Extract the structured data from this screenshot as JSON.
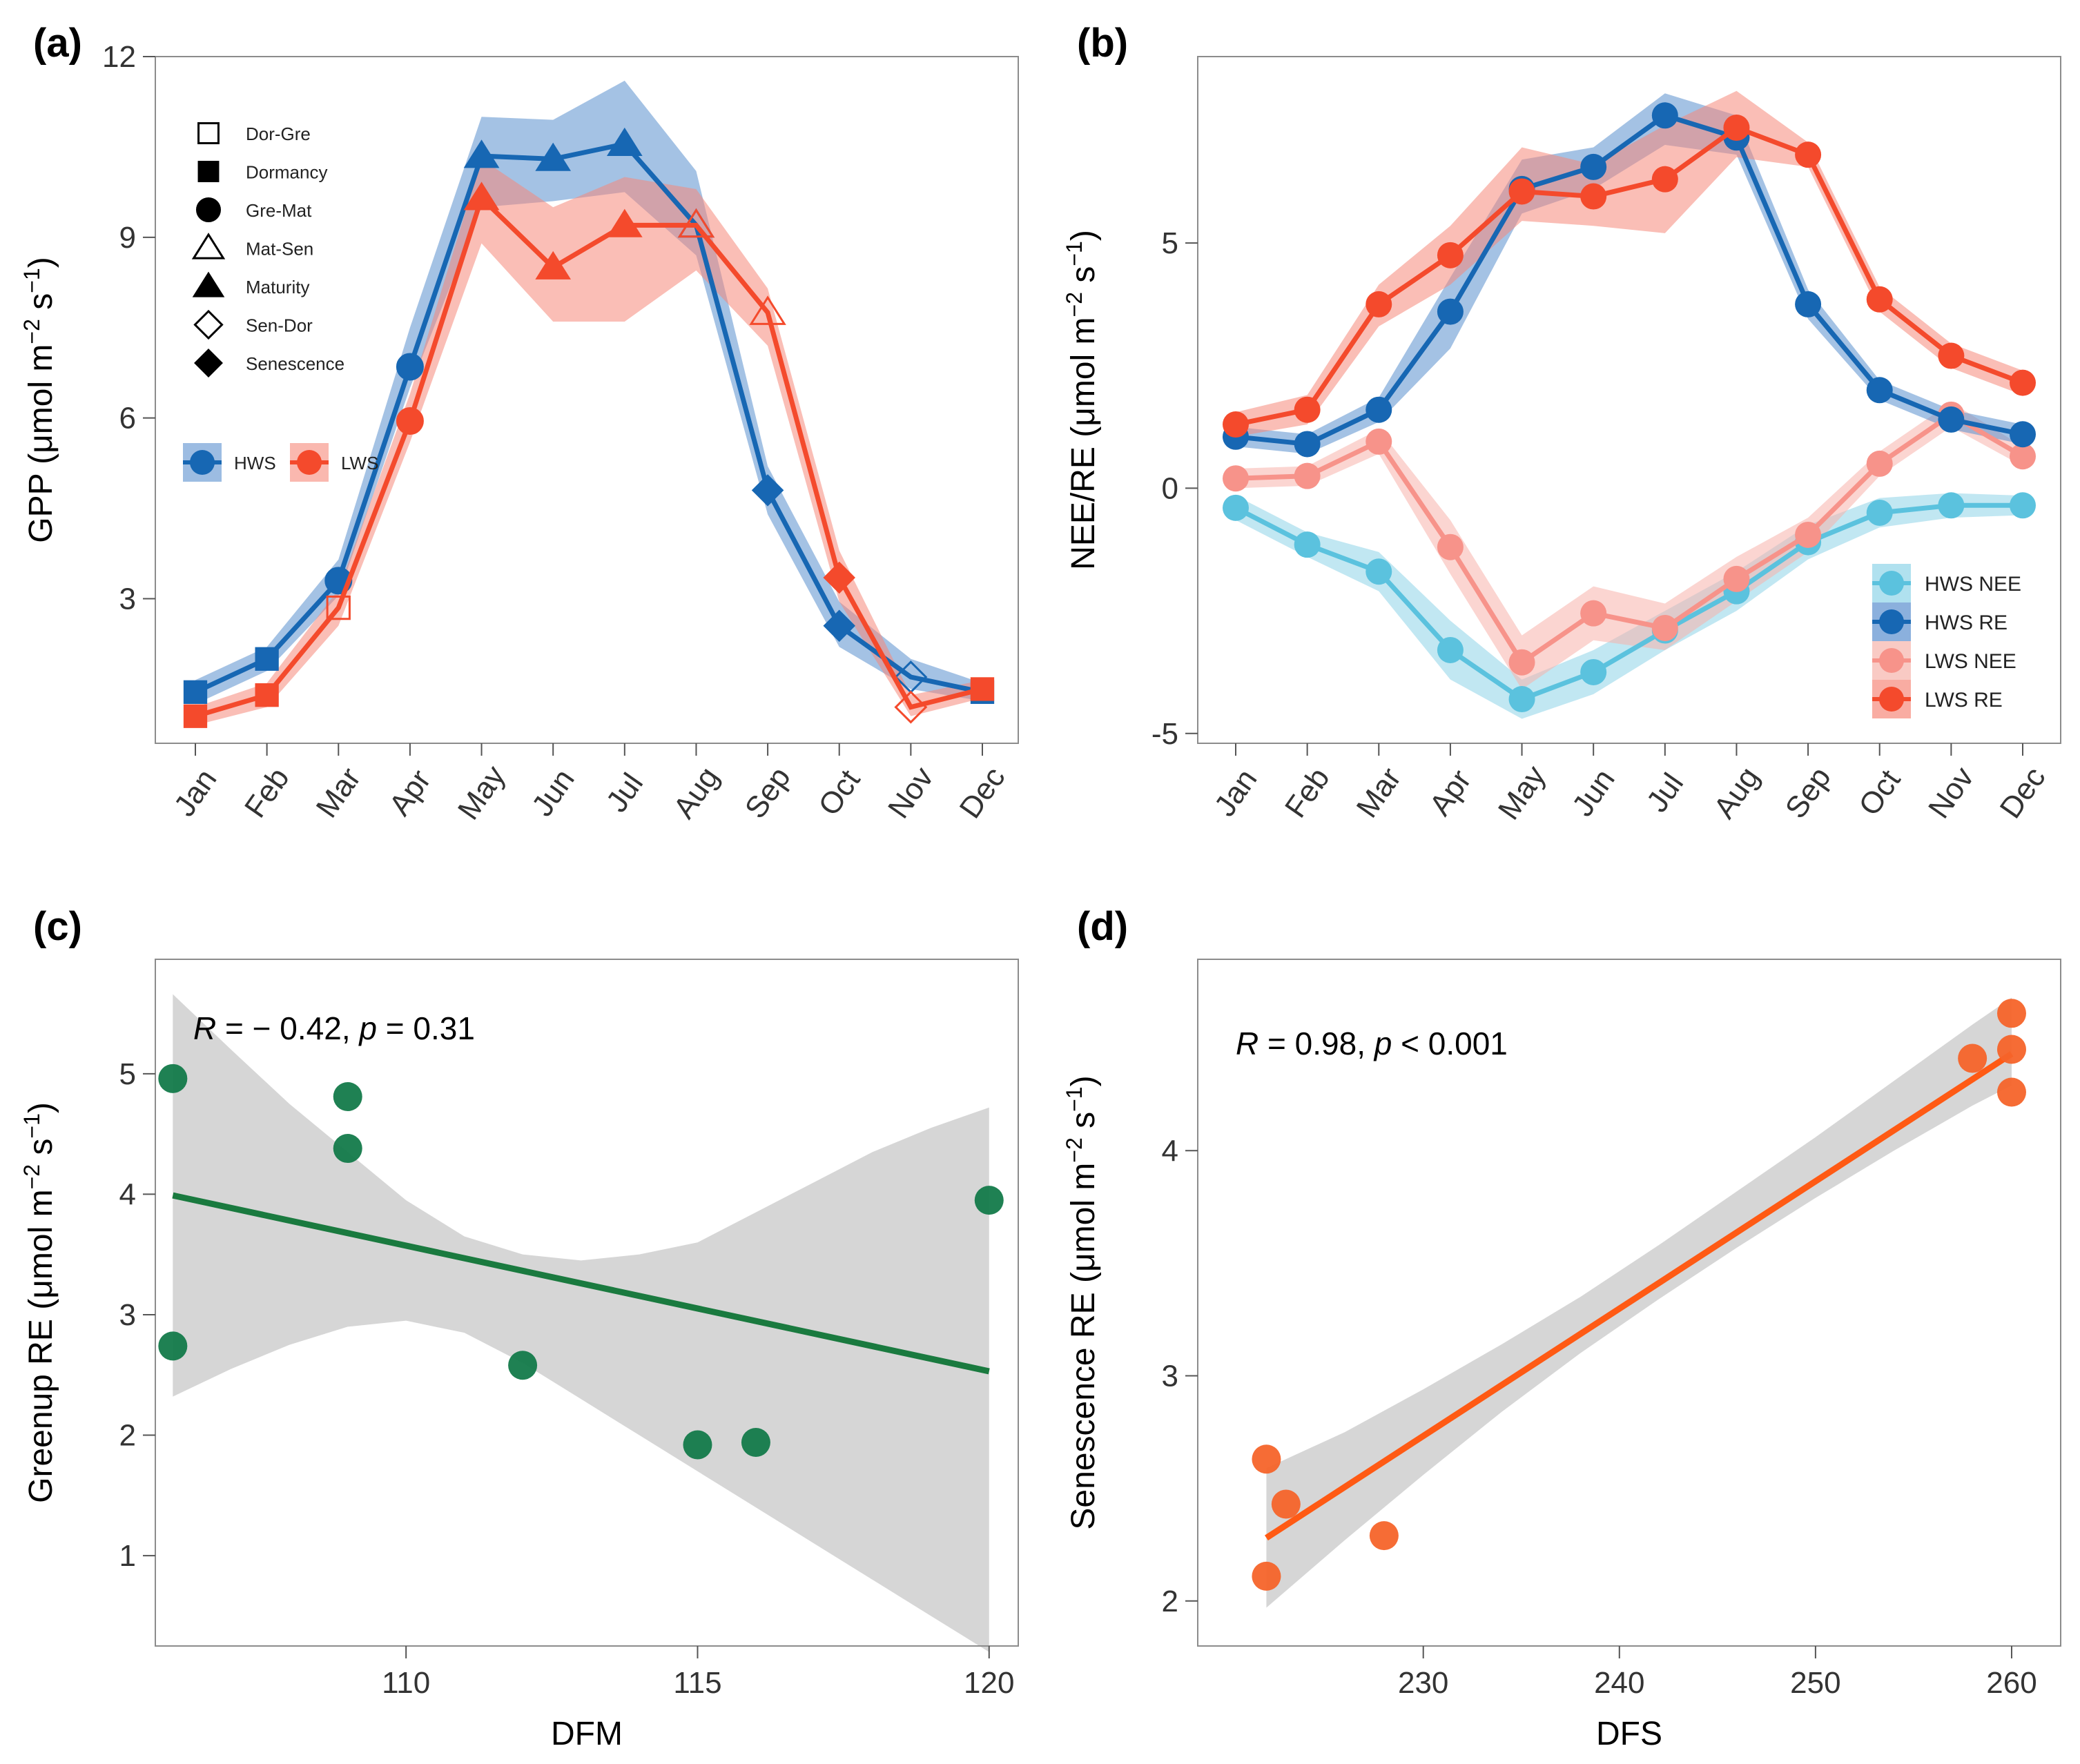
{
  "colors": {
    "hws": "#1767b3",
    "lws": "#f44a2c",
    "hws_band": "#5a8fce",
    "lws_band": "#f6897a",
    "hws_nee": "#5bc2de",
    "hws_nee_band": "#8ed4e8",
    "lws_nee": "#f7938a",
    "lws_nee_band": "#f7b3ab",
    "green": "#1a7a3f",
    "green_point": "#137a4a",
    "orange_line": "#ff5a14",
    "orange_point": "#f5642a",
    "ci_band": "#d6d6d6"
  },
  "chart_data": [
    {
      "id": "a",
      "panel_label": "(a)",
      "type": "line",
      "ylabel": "GPP (μmol m",
      "ylabel_sup": "−2",
      "ylabel_mid": " s",
      "ylabel_sup2": "−1",
      "ylabel_end": ")",
      "xlabel": "",
      "ylim": [
        0.6,
        12
      ],
      "yticks": [
        3,
        6,
        9,
        12
      ],
      "categories": [
        "Jan",
        "Feb",
        "Mar",
        "Apr",
        "May",
        "Jun",
        "Jul",
        "Aug",
        "Sep",
        "Oct",
        "Nov",
        "Dec"
      ],
      "phase_legend": [
        {
          "label": "Dor-Gre",
          "shape": "square",
          "filled": false
        },
        {
          "label": "Dormancy",
          "shape": "square",
          "filled": true
        },
        {
          "label": "Gre-Mat",
          "shape": "circle",
          "filled": true
        },
        {
          "label": "Mat-Sen",
          "shape": "triangle",
          "filled": false
        },
        {
          "label": "Maturity",
          "shape": "triangle",
          "filled": true
        },
        {
          "label": "Sen-Dor",
          "shape": "diamond",
          "filled": false
        },
        {
          "label": "Senescence",
          "shape": "diamond",
          "filled": true
        }
      ],
      "series_legend": [
        {
          "label": "HWS",
          "color": "#1767b3",
          "band": "#5a8fce"
        },
        {
          "label": "LWS",
          "color": "#f44a2c",
          "band": "#f6897a"
        }
      ],
      "series": [
        {
          "name": "HWS",
          "color": "#1767b3",
          "band_color": "#5a8fce",
          "values": [
            1.45,
            2.0,
            3.3,
            6.85,
            10.35,
            10.3,
            10.55,
            9.2,
            4.8,
            2.55,
            1.7,
            1.45
          ],
          "lower": [
            1.25,
            1.8,
            3.05,
            6.5,
            9.5,
            9.6,
            9.75,
            8.7,
            4.4,
            2.2,
            1.5,
            1.3
          ],
          "upper": [
            1.65,
            2.2,
            3.65,
            7.5,
            11.0,
            10.95,
            11.6,
            10.1,
            5.2,
            2.95,
            2.0,
            1.6
          ],
          "markers": [
            "square-filled",
            "square-filled",
            "circle-filled",
            "circle-filled",
            "triangle-filled",
            "triangle-filled",
            "triangle-filled",
            "triangle-open",
            "diamond-filled",
            "diamond-filled",
            "diamond-open",
            "square-filled"
          ]
        },
        {
          "name": "LWS",
          "color": "#f44a2c",
          "band_color": "#f6897a",
          "values": [
            1.05,
            1.4,
            2.85,
            5.95,
            9.65,
            8.5,
            9.2,
            9.2,
            7.75,
            3.35,
            1.2,
            1.5
          ],
          "lower": [
            0.9,
            1.2,
            2.55,
            5.6,
            8.9,
            7.6,
            7.6,
            8.45,
            7.2,
            2.95,
            1.05,
            1.35
          ],
          "upper": [
            1.2,
            1.6,
            3.15,
            6.4,
            10.3,
            9.5,
            10.0,
            9.8,
            8.15,
            3.8,
            1.4,
            1.65
          ],
          "markers": [
            "square-filled",
            "square-filled",
            "square-open",
            "circle-filled",
            "triangle-filled",
            "triangle-filled",
            "triangle-filled",
            "triangle-open",
            "triangle-open",
            "diamond-filled",
            "diamond-open",
            "square-filled"
          ]
        }
      ]
    },
    {
      "id": "b",
      "panel_label": "(b)",
      "type": "line",
      "ylabel": "NEE/RE (μmol m",
      "ylabel_sup": "−2",
      "ylabel_mid": " s",
      "ylabel_sup2": "−1",
      "ylabel_end": ")",
      "xlabel": "",
      "ylim": [
        -5.2,
        8.8
      ],
      "yticks": [
        -5,
        0,
        5
      ],
      "categories": [
        "Jan",
        "Feb",
        "Mar",
        "Apr",
        "May",
        "Jun",
        "Jul",
        "Aug",
        "Sep",
        "Oct",
        "Nov",
        "Dec"
      ],
      "series": [
        {
          "name": "HWS NEE",
          "color": "#5bc2de",
          "band_color": "#8ed4e8",
          "values": [
            -0.4,
            -1.15,
            -1.7,
            -3.3,
            -4.3,
            -3.75,
            -2.9,
            -2.1,
            -1.1,
            -0.5,
            -0.35,
            -0.35
          ],
          "lower": [
            -0.65,
            -1.4,
            -2.1,
            -3.9,
            -4.7,
            -4.2,
            -3.3,
            -2.5,
            -1.45,
            -0.8,
            -0.6,
            -0.55
          ],
          "upper": [
            -0.15,
            -0.9,
            -1.3,
            -2.7,
            -3.9,
            -3.3,
            -2.5,
            -1.7,
            -0.75,
            -0.2,
            -0.1,
            -0.15
          ]
        },
        {
          "name": "HWS RE",
          "color": "#1767b3",
          "band_color": "#5a8fce",
          "values": [
            1.05,
            0.9,
            1.6,
            3.6,
            6.1,
            6.55,
            7.6,
            7.15,
            3.75,
            2.0,
            1.4,
            1.1
          ],
          "lower": [
            0.85,
            0.7,
            1.35,
            2.85,
            5.6,
            6.1,
            7.0,
            6.8,
            3.45,
            1.8,
            1.2,
            0.9
          ],
          "upper": [
            1.25,
            1.1,
            1.85,
            4.3,
            6.7,
            6.95,
            8.05,
            7.6,
            4.05,
            2.2,
            1.6,
            1.3
          ]
        },
        {
          "name": "LWS NEE",
          "color": "#f7938a",
          "band_color": "#f7b3ab",
          "values": [
            0.2,
            0.25,
            0.95,
            -1.2,
            -3.55,
            -2.55,
            -2.85,
            -1.85,
            -0.95,
            0.5,
            1.5,
            0.65
          ],
          "lower": [
            0.0,
            0.05,
            0.7,
            -1.75,
            -4.1,
            -3.1,
            -3.3,
            -2.3,
            -1.3,
            0.25,
            1.25,
            0.45
          ],
          "upper": [
            0.4,
            0.45,
            1.2,
            -0.65,
            -3.0,
            -2.0,
            -2.35,
            -1.4,
            -0.6,
            0.75,
            1.75,
            0.85
          ]
        },
        {
          "name": "LWS RE",
          "color": "#f44a2c",
          "band_color": "#f6897a",
          "values": [
            1.3,
            1.6,
            3.75,
            4.75,
            6.05,
            5.95,
            6.3,
            7.35,
            6.8,
            3.85,
            2.7,
            2.15
          ],
          "lower": [
            1.05,
            1.3,
            3.3,
            4.15,
            5.45,
            5.35,
            5.2,
            6.75,
            6.55,
            3.6,
            2.45,
            1.9
          ],
          "upper": [
            1.55,
            1.9,
            4.15,
            5.35,
            6.95,
            6.6,
            7.4,
            8.1,
            7.05,
            4.1,
            2.95,
            2.4
          ]
        }
      ]
    },
    {
      "id": "c",
      "panel_label": "(c)",
      "type": "scatter",
      "xlabel": "DFM",
      "ylabel": "Greenup RE (μmol m",
      "ylabel_sup": "−2",
      "ylabel_mid": " s",
      "ylabel_sup2": "−1",
      "ylabel_end": ")",
      "xlim": [
        105.7,
        120.5
      ],
      "ylim": [
        0.25,
        5.95
      ],
      "xticks": [
        110,
        115,
        120
      ],
      "yticks": [
        1,
        2,
        3,
        4,
        5
      ],
      "stat_r": "R",
      "stat_rest": " = − 0.42, ",
      "stat_p": "p",
      "stat_pval": " = 0.31",
      "x": [
        106,
        106,
        109,
        109,
        112,
        115,
        116,
        120
      ],
      "y": [
        4.96,
        2.74,
        4.81,
        4.38,
        2.58,
        1.92,
        1.94,
        3.95
      ],
      "fit": {
        "x": [
          106,
          120
        ],
        "y": [
          3.99,
          2.53
        ]
      },
      "band": {
        "x": [
          106,
          107,
          108,
          109,
          110,
          111,
          112,
          113,
          114,
          115,
          116,
          117,
          118,
          119,
          120
        ],
        "lower": [
          2.32,
          2.55,
          2.75,
          2.9,
          2.95,
          2.85,
          2.6,
          2.3,
          2.0,
          1.7,
          1.4,
          1.1,
          0.8,
          0.5,
          0.2
        ],
        "upper": [
          5.66,
          5.2,
          4.75,
          4.35,
          3.95,
          3.65,
          3.5,
          3.45,
          3.5,
          3.6,
          3.85,
          4.1,
          4.35,
          4.55,
          4.72
        ]
      }
    },
    {
      "id": "d",
      "panel_label": "(d)",
      "type": "scatter",
      "xlabel": "DFS",
      "ylabel": "Senescence RE (μmol m",
      "ylabel_sup": "−2",
      "ylabel_mid": " s",
      "ylabel_sup2": "−1",
      "ylabel_end": ")",
      "xlim": [
        218.5,
        262.5
      ],
      "ylim": [
        1.8,
        4.85
      ],
      "xticks": [
        230,
        240,
        250,
        260
      ],
      "yticks": [
        2,
        3,
        4
      ],
      "stat_r": "R",
      "stat_rest": " = 0.98, ",
      "stat_p": "p",
      "stat_pval": " < 0.001",
      "x": [
        222,
        223,
        222,
        228,
        258,
        260,
        260,
        260
      ],
      "y": [
        2.63,
        2.43,
        2.11,
        2.29,
        4.41,
        4.61,
        4.45,
        4.26
      ],
      "fit": {
        "x": [
          222,
          260
        ],
        "y": [
          2.28,
          4.43
        ]
      },
      "band": {
        "x": [
          222,
          226,
          230,
          234,
          238,
          242,
          246,
          250,
          254,
          258,
          260
        ],
        "lower": [
          1.97,
          2.27,
          2.56,
          2.84,
          3.1,
          3.34,
          3.57,
          3.79,
          4.0,
          4.2,
          4.29
        ],
        "upper": [
          2.59,
          2.75,
          2.94,
          3.14,
          3.35,
          3.58,
          3.82,
          4.06,
          4.31,
          4.56,
          4.68
        ]
      }
    }
  ]
}
